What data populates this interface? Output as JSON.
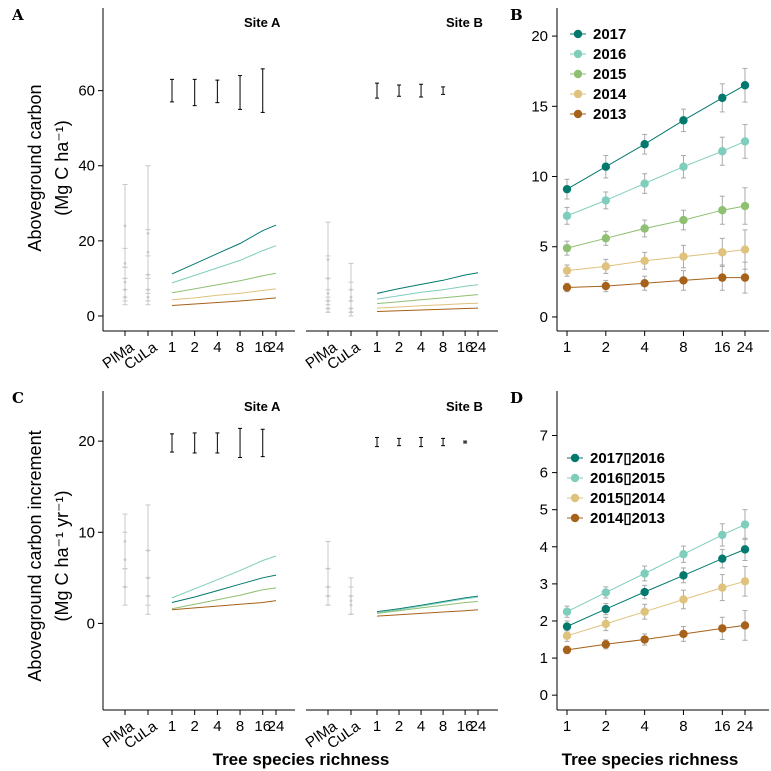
{
  "figure": {
    "x_axis_title": "Tree species richness",
    "y_title_top_line1": "Aboveground carbon",
    "y_title_top_line2": "(Mg C ha⁻¹)",
    "y_title_bottom_line1": "Aboveground carbon increment",
    "y_title_bottom_line2": "(Mg C ha⁻¹ yr⁻¹)"
  },
  "colors": {
    "2017": "#01796d",
    "2016": "#7fcdbb",
    "2015": "#8fbf72",
    "2014": "#dfc27d",
    "2013": "#a6611a",
    "ref": "#c8c8c8"
  },
  "chart_data": [
    {
      "panel": "A",
      "site": "Site A",
      "type": "line",
      "ylim": [
        -4,
        82
      ],
      "yticks": [
        0,
        20,
        40,
        60
      ],
      "richness": [
        1,
        2,
        4,
        8,
        16,
        24
      ],
      "richness_labels": [
        "1",
        "2",
        "4",
        "8",
        "16",
        "24"
      ],
      "reference_labels": [
        "PlMa",
        "CuLa"
      ],
      "series": [
        {
          "key": "2017",
          "values": [
            11.2,
            13.9,
            16.6,
            19.3,
            22.7,
            24.2
          ]
        },
        {
          "key": "2016",
          "values": [
            8.8,
            10.8,
            12.8,
            14.8,
            17.4,
            18.7
          ]
        },
        {
          "key": "2015",
          "values": [
            6.2,
            7.2,
            8.3,
            9.4,
            10.7,
            11.4
          ]
        },
        {
          "key": "2014",
          "values": [
            4.3,
            4.8,
            5.5,
            6.0,
            6.8,
            7.2
          ]
        },
        {
          "key": "2013",
          "values": [
            2.8,
            3.2,
            3.6,
            4.0,
            4.5,
            4.8
          ]
        }
      ],
      "ci_marks": [
        {
          "center": 60.0,
          "half": 3.0
        },
        {
          "center": 59.5,
          "half": 3.5
        },
        {
          "center": 59.8,
          "half": 3.0
        },
        {
          "center": 59.5,
          "half": 4.5
        },
        {
          "center": 60.0,
          "half": 5.8
        }
      ],
      "reference_points": [
        {
          "group": "PlMa",
          "values": [
            24,
            14,
            9,
            7,
            5
          ],
          "err": [
            11,
            4,
            4,
            3,
            2
          ]
        },
        {
          "group": "CuLa",
          "values": [
            22,
            17,
            11,
            7,
            5
          ],
          "err": [
            18,
            6,
            5,
            3,
            2
          ]
        }
      ]
    },
    {
      "panel": "A",
      "site": "Site B",
      "type": "line",
      "ylim": [
        -4,
        82
      ],
      "richness": [
        1,
        2,
        4,
        8,
        16,
        24
      ],
      "richness_labels": [
        "1",
        "2",
        "4",
        "8",
        "16",
        "24"
      ],
      "reference_labels": [
        "PlMa",
        "CuLa"
      ],
      "series": [
        {
          "key": "2017",
          "values": [
            6.0,
            7.3,
            8.4,
            9.5,
            10.9,
            11.5
          ]
        },
        {
          "key": "2016",
          "values": [
            4.5,
            5.4,
            6.3,
            7.0,
            7.9,
            8.3
          ]
        },
        {
          "key": "2015",
          "values": [
            3.3,
            3.8,
            4.3,
            4.8,
            5.4,
            5.7
          ]
        },
        {
          "key": "2014",
          "values": [
            2.1,
            2.4,
            2.7,
            3.0,
            3.3,
            3.4
          ]
        },
        {
          "key": "2013",
          "values": [
            1.2,
            1.4,
            1.6,
            1.8,
            2.0,
            2.1
          ]
        }
      ],
      "ci_marks": [
        {
          "center": 60.0,
          "half": 2.0
        },
        {
          "center": 60.0,
          "half": 1.5
        },
        {
          "center": 60.0,
          "half": 1.7
        },
        {
          "center": 60.0,
          "half": 1.0
        }
      ],
      "reference_points": [
        {
          "group": "PlMa",
          "values": [
            15,
            10,
            6,
            4,
            2
          ],
          "err": [
            10,
            6,
            4,
            3,
            1
          ]
        },
        {
          "group": "CuLa",
          "values": [
            7,
            5,
            4,
            2,
            1
          ],
          "err": [
            7,
            4,
            3,
            2,
            1
          ]
        }
      ]
    },
    {
      "panel": "B",
      "type": "line",
      "ylim": [
        -1,
        22
      ],
      "yticks": [
        0,
        5,
        10,
        15,
        20
      ],
      "richness": [
        1,
        2,
        4,
        8,
        16,
        24
      ],
      "richness_labels": [
        "1",
        "2",
        "4",
        "8",
        "16",
        "24"
      ],
      "legend": [
        "2017",
        "2016",
        "2015",
        "2014",
        "2013"
      ],
      "series": [
        {
          "key": "2017",
          "values": [
            9.1,
            10.7,
            12.3,
            14.0,
            15.6,
            16.5
          ],
          "err": [
            0.7,
            0.8,
            0.7,
            0.8,
            1.0,
            1.2
          ]
        },
        {
          "key": "2016",
          "values": [
            7.2,
            8.3,
            9.5,
            10.7,
            11.8,
            12.5
          ],
          "err": [
            0.6,
            0.6,
            0.7,
            0.8,
            1.0,
            1.2
          ]
        },
        {
          "key": "2015",
          "values": [
            4.9,
            5.6,
            6.3,
            6.9,
            7.6,
            7.9
          ],
          "err": [
            0.5,
            0.5,
            0.6,
            0.7,
            1.0,
            1.3
          ]
        },
        {
          "key": "2014",
          "values": [
            3.3,
            3.6,
            4.0,
            4.3,
            4.6,
            4.8
          ],
          "err": [
            0.4,
            0.5,
            0.6,
            0.8,
            1.0,
            1.4
          ]
        },
        {
          "key": "2013",
          "values": [
            2.1,
            2.2,
            2.4,
            2.6,
            2.8,
            2.8
          ],
          "err": [
            0.3,
            0.4,
            0.5,
            0.7,
            0.9,
            1.1
          ]
        }
      ]
    },
    {
      "panel": "C",
      "site": "Site A",
      "type": "line",
      "ylim": [
        -9.5,
        25.5
      ],
      "yticks": [
        0,
        10,
        20
      ],
      "richness": [
        1,
        2,
        4,
        8,
        16,
        24
      ],
      "richness_labels": [
        "1",
        "2",
        "4",
        "8",
        "16",
        "24"
      ],
      "reference_labels": [
        "PlMa",
        "CuLa"
      ],
      "series": [
        {
          "key": "2016",
          "values": [
            2.8,
            3.8,
            4.8,
            5.8,
            6.9,
            7.4
          ]
        },
        {
          "key": "2017",
          "values": [
            2.3,
            2.9,
            3.6,
            4.3,
            5.0,
            5.3
          ]
        },
        {
          "key": "2015",
          "values": [
            1.6,
            2.1,
            2.6,
            3.1,
            3.7,
            3.9
          ]
        },
        {
          "key": "2013",
          "values": [
            1.5,
            1.7,
            1.9,
            2.1,
            2.3,
            2.5
          ]
        }
      ],
      "ci_marks": [
        {
          "center": 19.8,
          "half": 1.0
        },
        {
          "center": 19.8,
          "half": 1.1
        },
        {
          "center": 19.8,
          "half": 1.1
        },
        {
          "center": 19.8,
          "half": 1.6
        },
        {
          "center": 19.8,
          "half": 1.5
        }
      ],
      "reference_points": [
        {
          "group": "PlMa",
          "values": [
            9,
            7,
            4
          ],
          "err": [
            3,
            3,
            2
          ]
        },
        {
          "group": "CuLa",
          "values": [
            8,
            5,
            3
          ],
          "err": [
            5,
            3,
            2
          ]
        }
      ]
    },
    {
      "panel": "C",
      "site": "Site B",
      "type": "line",
      "ylim": [
        -9.5,
        25.5
      ],
      "richness": [
        1,
        2,
        4,
        8,
        16,
        24
      ],
      "richness_labels": [
        "1",
        "2",
        "4",
        "8",
        "16",
        "24"
      ],
      "reference_labels": [
        "PlMa",
        "CuLa"
      ],
      "series": [
        {
          "key": "2017",
          "values": [
            1.3,
            1.6,
            2.0,
            2.4,
            2.8,
            3.0
          ]
        },
        {
          "key": "2016",
          "values": [
            1.2,
            1.5,
            1.9,
            2.3,
            2.7,
            2.9
          ]
        },
        {
          "key": "2015",
          "values": [
            1.1,
            1.4,
            1.7,
            2.0,
            2.3,
            2.4
          ]
        },
        {
          "key": "2013",
          "values": [
            0.8,
            0.95,
            1.1,
            1.25,
            1.4,
            1.5
          ]
        }
      ],
      "ci_marks": [
        {
          "center": 19.9,
          "half": 0.5
        },
        {
          "center": 19.9,
          "half": 0.4
        },
        {
          "center": 19.9,
          "half": 0.5
        },
        {
          "center": 19.9,
          "half": 0.4
        },
        {
          "center": 19.9,
          "half": 0.1
        }
      ],
      "reference_points": [
        {
          "group": "PlMa",
          "values": [
            6,
            4,
            3
          ],
          "err": [
            3,
            2,
            1
          ]
        },
        {
          "group": "CuLa",
          "values": [
            3,
            2.5,
            2
          ],
          "err": [
            2,
            1.5,
            1
          ]
        }
      ]
    },
    {
      "panel": "D",
      "type": "line",
      "ylim": [
        -0.4,
        8.2
      ],
      "yticks": [
        0,
        1,
        2,
        3,
        4,
        5,
        6,
        7
      ],
      "richness": [
        1,
        2,
        4,
        8,
        16,
        24
      ],
      "richness_labels": [
        "1",
        "2",
        "4",
        "8",
        "16",
        "24"
      ],
      "legend": [
        "2017▯2016",
        "2016▯2015",
        "2015▯2014",
        "2014▯2013"
      ],
      "series": [
        {
          "key": "2017",
          "values": [
            1.85,
            2.32,
            2.78,
            3.23,
            3.68,
            3.93
          ],
          "err": [
            0.15,
            0.15,
            0.18,
            0.2,
            0.25,
            0.3
          ]
        },
        {
          "key": "2016",
          "values": [
            2.25,
            2.77,
            3.28,
            3.8,
            4.32,
            4.6
          ],
          "err": [
            0.15,
            0.15,
            0.2,
            0.22,
            0.3,
            0.4
          ]
        },
        {
          "key": "2014",
          "values": [
            1.6,
            1.92,
            2.25,
            2.58,
            2.9,
            3.07
          ],
          "err": [
            0.15,
            0.18,
            0.2,
            0.25,
            0.35,
            0.4
          ]
        },
        {
          "key": "2013",
          "values": [
            1.22,
            1.37,
            1.5,
            1.65,
            1.8,
            1.88
          ],
          "err": [
            0.1,
            0.12,
            0.15,
            0.2,
            0.3,
            0.4
          ]
        }
      ]
    }
  ]
}
